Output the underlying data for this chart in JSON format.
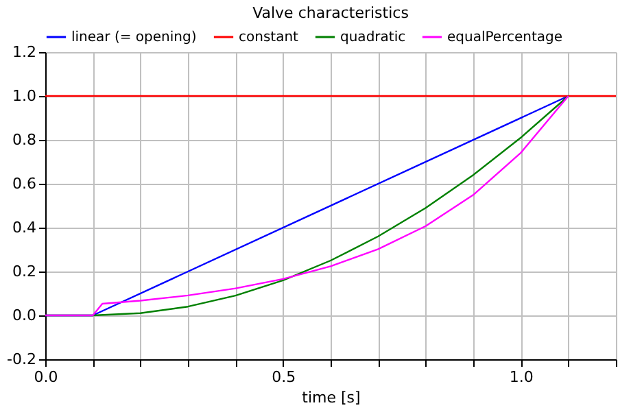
{
  "chart_data": {
    "type": "line",
    "title": "Valve characteristics",
    "xlabel": "time [s]",
    "xlim": [
      0,
      1.2
    ],
    "ylim": [
      -0.2,
      1.2
    ],
    "xticks": [
      {
        "value": 0,
        "label": "0.0"
      },
      {
        "value": 0.1,
        "label": null
      },
      {
        "value": 0.2,
        "label": null
      },
      {
        "value": 0.3,
        "label": null
      },
      {
        "value": 0.4,
        "label": null
      },
      0.5,
      {
        "value": 0.6,
        "label": null
      },
      {
        "value": 0.7,
        "label": null
      },
      {
        "value": 0.8,
        "label": null
      },
      {
        "value": 0.9,
        "label": null
      },
      {
        "value": 1,
        "label": "1.0"
      },
      {
        "value": 1.1,
        "label": null
      },
      {
        "value": 1.2,
        "label": null
      }
    ],
    "yticks": [
      -0.2,
      {
        "value": 0,
        "label": "0.0"
      },
      0.2,
      0.4,
      0.6,
      0.8,
      {
        "value": 1,
        "label": "1.0"
      },
      1.2
    ],
    "grid": true,
    "legend": "top",
    "line_style": "solid",
    "marker": "none",
    "series": [
      {
        "name": "linear (= opening)",
        "color": "#0000ff",
        "x": [
          0,
          0.1,
          1.1
        ],
        "values": [
          0,
          0,
          1
        ]
      },
      {
        "name": "constant",
        "color": "#ff0000",
        "x": [
          0,
          1.2
        ],
        "values": [
          1,
          1
        ]
      },
      {
        "name": "quadratic",
        "color": "#008000",
        "x": [
          0,
          0.1,
          0.2,
          0.3,
          0.4,
          0.5,
          0.6,
          0.7,
          0.8,
          0.9,
          1.0,
          1.1
        ],
        "values": [
          0,
          0,
          0.01,
          0.04,
          0.09,
          0.16,
          0.25,
          0.36,
          0.49,
          0.64,
          0.81,
          1
        ]
      },
      {
        "name": "equalPercentage",
        "color": "#ff00ff",
        "x": [
          0,
          0.1,
          0.12,
          0.2,
          0.3,
          0.4,
          0.5,
          0.6,
          0.7,
          0.8,
          0.9,
          1.0,
          1.1
        ],
        "values": [
          0,
          0,
          0.053,
          0.067,
          0.091,
          0.123,
          0.166,
          0.224,
          0.302,
          0.407,
          0.549,
          0.741,
          1
        ]
      }
    ]
  }
}
